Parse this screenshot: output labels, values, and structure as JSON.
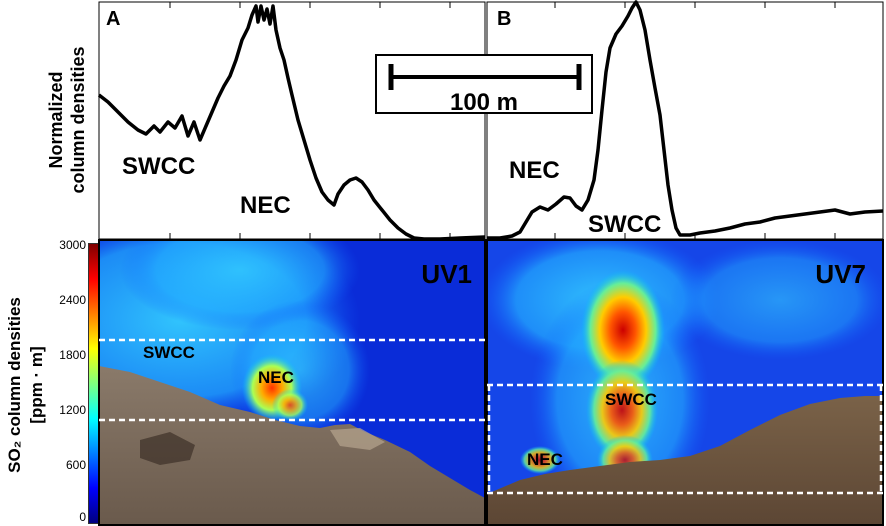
{
  "top_axis_label": [
    "Normalized",
    "column densities"
  ],
  "colorbar": {
    "ticks": [
      "3000",
      "2400",
      "1800",
      "1200",
      "600",
      "0"
    ],
    "label_line1": "SO₂ column densities",
    "label_line2": "[ppm · m]",
    "colors": [
      "#00007f",
      "#0000ff",
      "#007fff",
      "#00ffff",
      "#7fff7f",
      "#ffff00",
      "#ff7f00",
      "#ff0000",
      "#7f0000"
    ]
  },
  "panel_a": {
    "letter": "A",
    "label_swcc": "SWCC",
    "label_nec": "NEC",
    "camera": "UV1",
    "img_label_swcc": "SWCC",
    "img_label_nec": "NEC"
  },
  "panel_b": {
    "letter": "B",
    "label_nec": "NEC",
    "label_swcc": "SWCC",
    "camera": "UV7",
    "img_label_swcc": "SWCC",
    "img_label_nec": "NEC"
  },
  "scale_bar": {
    "text": "100 m"
  }
}
